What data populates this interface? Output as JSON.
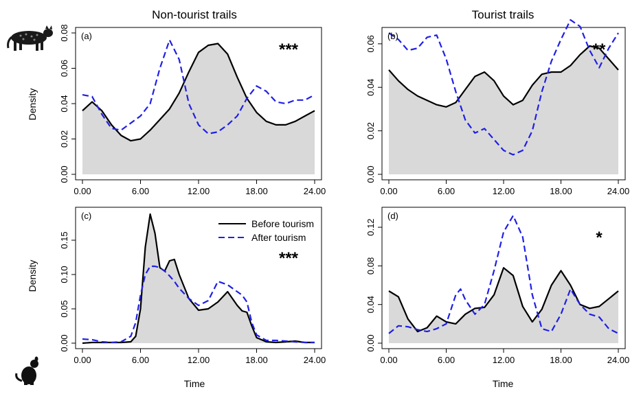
{
  "figure": {
    "col_titles": [
      "Non-tourist trails",
      "Tourist trails"
    ],
    "xlabel": "Time",
    "ylabel": "Density",
    "legend": {
      "before": "Before tourism",
      "after": "After tourism"
    }
  },
  "colors": {
    "before": "#000000",
    "after": "#1f1fe6",
    "fill": "#d9d9d9"
  },
  "icons": [
    "ocelot-icon",
    "small-mammal-icon"
  ],
  "chart_data": [
    {
      "type": "area",
      "panel": "(a)",
      "significance": "***",
      "x": [
        0,
        1,
        2,
        3,
        4,
        5,
        6,
        7,
        8,
        9,
        10,
        11,
        12,
        13,
        14,
        15,
        16,
        17,
        18,
        19,
        20,
        21,
        22,
        23,
        24
      ],
      "xticks": [
        0,
        6,
        12,
        18,
        24
      ],
      "xtick_labels": [
        "0.00",
        "6.00",
        "12.00",
        "18.00",
        "24.00"
      ],
      "ylim": [
        0,
        0.08
      ],
      "yticks": [
        0,
        0.02,
        0.04,
        0.06,
        0.08
      ],
      "ytick_labels": [
        "0.00",
        "0.02",
        "0.04",
        "0.06",
        "0.08"
      ],
      "series": [
        {
          "name": "Before tourism",
          "values": [
            0.036,
            0.041,
            0.036,
            0.028,
            0.022,
            0.019,
            0.02,
            0.025,
            0.031,
            0.037,
            0.046,
            0.058,
            0.069,
            0.073,
            0.074,
            0.068,
            0.055,
            0.043,
            0.035,
            0.03,
            0.028,
            0.028,
            0.03,
            0.033,
            0.036
          ]
        },
        {
          "name": "After tourism",
          "values": [
            0.045,
            0.044,
            0.034,
            0.026,
            0.025,
            0.029,
            0.033,
            0.04,
            0.06,
            0.076,
            0.065,
            0.04,
            0.028,
            0.023,
            0.024,
            0.028,
            0.033,
            0.043,
            0.05,
            0.047,
            0.041,
            0.04,
            0.042,
            0.042,
            0.045
          ]
        }
      ]
    },
    {
      "type": "area",
      "panel": "(b)",
      "significance": "**",
      "x": [
        0,
        1,
        2,
        3,
        4,
        5,
        6,
        7,
        8,
        9,
        10,
        11,
        12,
        13,
        14,
        15,
        16,
        17,
        18,
        19,
        20,
        21,
        22,
        23,
        24
      ],
      "xticks": [
        0,
        6,
        12,
        18,
        24
      ],
      "xtick_labels": [
        "0.00",
        "6.00",
        "12.00",
        "18.00",
        "24.00"
      ],
      "ylim": [
        0,
        0.065
      ],
      "yticks": [
        0,
        0.02,
        0.04,
        0.06
      ],
      "ytick_labels": [
        "0.00",
        "0.02",
        "0.04",
        "0.06"
      ],
      "series": [
        {
          "name": "Before tourism",
          "values": [
            0.048,
            0.043,
            0.039,
            0.036,
            0.034,
            0.032,
            0.031,
            0.033,
            0.039,
            0.045,
            0.047,
            0.043,
            0.036,
            0.032,
            0.034,
            0.041,
            0.046,
            0.047,
            0.047,
            0.05,
            0.055,
            0.059,
            0.058,
            0.053,
            0.048
          ]
        },
        {
          "name": "After tourism",
          "values": [
            0.065,
            0.062,
            0.057,
            0.058,
            0.063,
            0.064,
            0.053,
            0.038,
            0.025,
            0.019,
            0.021,
            0.016,
            0.011,
            0.009,
            0.011,
            0.02,
            0.038,
            0.052,
            0.062,
            0.071,
            0.068,
            0.057,
            0.049,
            0.058,
            0.065
          ]
        }
      ]
    },
    {
      "type": "area",
      "panel": "(c)",
      "significance": "***",
      "x": [
        0,
        1,
        2,
        3,
        4,
        5,
        5.5,
        6,
        6.5,
        7,
        7.5,
        8,
        8.5,
        9,
        9.5,
        10,
        11,
        12,
        13,
        14,
        15,
        16,
        16.5,
        17,
        17.5,
        18,
        19,
        20,
        21,
        22,
        23,
        24
      ],
      "xticks": [
        0,
        6,
        12,
        18,
        24
      ],
      "xtick_labels": [
        "0.00",
        "6.00",
        "12.00",
        "18.00",
        "24.00"
      ],
      "ylim": [
        0,
        0.19
      ],
      "yticks": [
        0,
        0.05,
        0.1,
        0.15
      ],
      "ytick_labels": [
        "0.00",
        "0.05",
        "0.10",
        "0.15"
      ],
      "series": [
        {
          "name": "Before tourism",
          "values": [
            0.0,
            0.001,
            0.001,
            0.001,
            0.001,
            0.002,
            0.01,
            0.05,
            0.14,
            0.188,
            0.16,
            0.11,
            0.105,
            0.12,
            0.122,
            0.1,
            0.065,
            0.048,
            0.05,
            0.06,
            0.075,
            0.055,
            0.047,
            0.045,
            0.025,
            0.008,
            0.002,
            0.001,
            0.002,
            0.003,
            0.001,
            0.001
          ]
        },
        {
          "name": "After tourism",
          "values": [
            0.006,
            0.005,
            0.002,
            0.001,
            0.002,
            0.01,
            0.03,
            0.07,
            0.1,
            0.112,
            0.112,
            0.11,
            0.105,
            0.098,
            0.09,
            0.08,
            0.065,
            0.055,
            0.062,
            0.09,
            0.085,
            0.075,
            0.07,
            0.06,
            0.03,
            0.012,
            0.004,
            0.004,
            0.003,
            0.002,
            0.001,
            0.001
          ]
        }
      ]
    },
    {
      "type": "area",
      "panel": "(d)",
      "significance": "*",
      "x": [
        0,
        1,
        2,
        3,
        4,
        5,
        6,
        7,
        7.5,
        8,
        9,
        10,
        11,
        12,
        13,
        14,
        15,
        16,
        17,
        18,
        19,
        20,
        21,
        22,
        23,
        24
      ],
      "xticks": [
        0,
        6,
        12,
        18,
        24
      ],
      "xtick_labels": [
        "0.00",
        "6.00",
        "12.00",
        "18.00",
        "24.00"
      ],
      "ylim": [
        0,
        0.135
      ],
      "yticks": [
        0,
        0.04,
        0.08,
        0.12
      ],
      "ytick_labels": [
        "0.00",
        "0.04",
        "0.08",
        "0.12"
      ],
      "series": [
        {
          "name": "Before tourism",
          "values": [
            0.054,
            0.048,
            0.025,
            0.012,
            0.016,
            0.028,
            0.022,
            0.02,
            0.025,
            0.03,
            0.036,
            0.037,
            0.05,
            0.078,
            0.07,
            0.038,
            0.022,
            0.035,
            0.06,
            0.075,
            0.06,
            0.04,
            0.036,
            0.038,
            0.046,
            0.054
          ]
        },
        {
          "name": "After tourism",
          "values": [
            0.01,
            0.018,
            0.017,
            0.014,
            0.012,
            0.015,
            0.02,
            0.05,
            0.056,
            0.045,
            0.03,
            0.04,
            0.075,
            0.115,
            0.132,
            0.11,
            0.05,
            0.015,
            0.012,
            0.03,
            0.056,
            0.04,
            0.03,
            0.027,
            0.015,
            0.01
          ]
        }
      ]
    }
  ]
}
